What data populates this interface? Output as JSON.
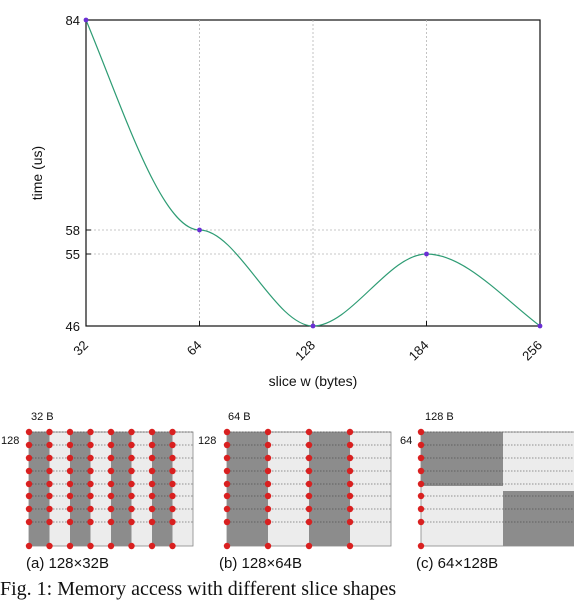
{
  "chart_data": {
    "type": "line",
    "xlabel": "slice w (bytes)",
    "ylabel": "time (us)",
    "x_ticks": [
      "32",
      "64",
      "128",
      "184",
      "256"
    ],
    "y_ticks": [
      "46",
      "55",
      "58",
      "84"
    ],
    "x": [
      32,
      64,
      128,
      184,
      256
    ],
    "series": [
      {
        "values": [
          84,
          58,
          46,
          55,
          46
        ],
        "color": "#2e9c74"
      }
    ],
    "marker_color": "#6a2fd4",
    "grid": true
  },
  "panels": [
    {
      "caption": "(a)  128×32B",
      "width_label": "32 B",
      "height_label": "128"
    },
    {
      "caption": "(b)  128×64B",
      "width_label": "64 B",
      "height_label": "128"
    },
    {
      "caption": "(c)  64×128B",
      "width_label": "128 B",
      "height_label": "64"
    }
  ],
  "colors": {
    "dark": "#8c8c8c",
    "light": "#ececec",
    "dot": "#d92020"
  },
  "figure_caption": "Fig. 1: Memory access with different slice shapes"
}
